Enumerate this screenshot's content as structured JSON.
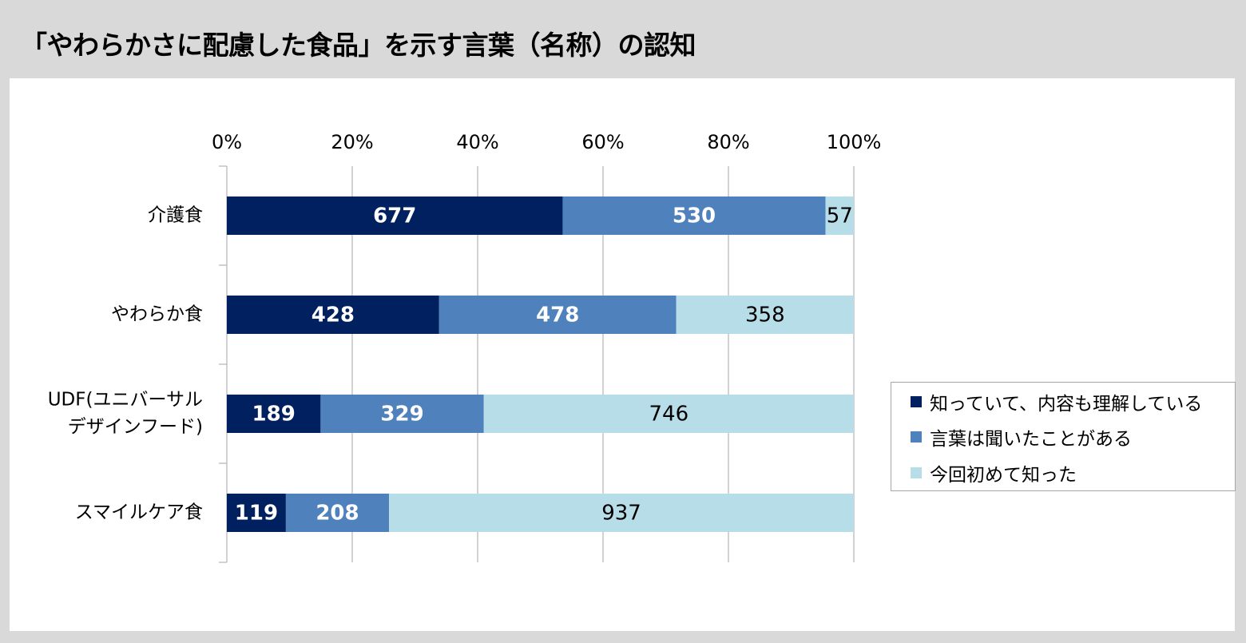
{
  "title": "「やわらかさに配慮した食品」を示す言葉（名称）の認知",
  "chart_data": {
    "type": "bar",
    "orientation": "horizontal",
    "stacked": "percent",
    "title": "「やわらかさに配慮した食品」を示す言葉（名称）の認知",
    "categories": [
      [
        "介護食"
      ],
      [
        "やわらか食"
      ],
      [
        "UDF(ユニバーサル",
        "デザインフード)"
      ],
      [
        "スマイルケア食"
      ]
    ],
    "series": [
      {
        "name": "知っていて、内容も理解している",
        "color": "#002060",
        "label_color": "#ffffff",
        "label_bold": true,
        "values": [
          677,
          428,
          189,
          119
        ]
      },
      {
        "name": "言葉は聞いたことがある",
        "color": "#4f81bd",
        "label_color": "#ffffff",
        "label_bold": true,
        "values": [
          530,
          478,
          329,
          208
        ]
      },
      {
        "name": "今回初めて知った",
        "color": "#b7dde8",
        "label_color": "#000000",
        "label_bold": false,
        "values": [
          57,
          358,
          746,
          937
        ]
      }
    ],
    "x_ticks": [
      "0%",
      "20%",
      "40%",
      "60%",
      "80%",
      "100%"
    ],
    "xlim": [
      0,
      100
    ],
    "grid": true,
    "legend_position": "right"
  }
}
